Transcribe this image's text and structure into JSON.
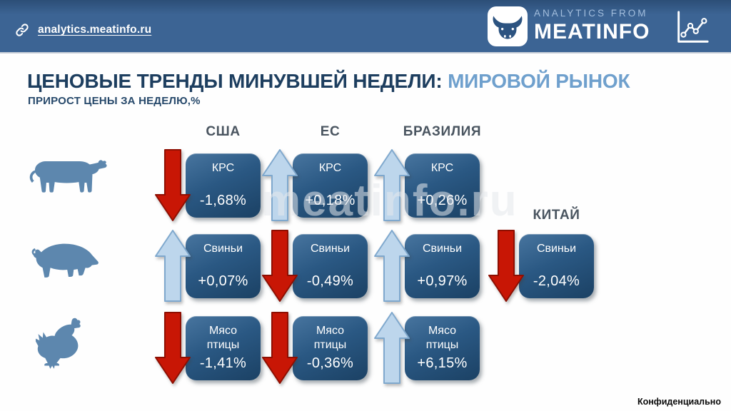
{
  "header": {
    "link_text": "analytics.meatinfo.ru",
    "logo": {
      "tagline": "ANALYTICS FROM",
      "brand": "MEATINFO"
    },
    "icons": {
      "left": "link-icon",
      "logo": "bull-icon",
      "right": "line-chart-icon"
    }
  },
  "title": {
    "main": "ЦЕНОВЫЕ ТРЕНДЫ МИНУВШЕЙ НЕДЕЛИ: ",
    "highlight": "МИРОВОЙ РЫНОК",
    "subtitle": "ПРИРОСТ ЦЕНЫ ЗА НЕДЕЛЮ,%"
  },
  "columns": [
    {
      "id": "usa",
      "label": "США"
    },
    {
      "id": "eu",
      "label": "ЕС"
    },
    {
      "id": "brazil",
      "label": "БРАЗИЛИЯ"
    },
    {
      "id": "china",
      "label": "КИТАЙ"
    }
  ],
  "rows": [
    {
      "id": "cattle",
      "icon": "cow-icon"
    },
    {
      "id": "pigs",
      "icon": "pig-icon"
    },
    {
      "id": "poultry",
      "icon": "chicken-icon"
    }
  ],
  "cards": [
    {
      "column": "usa",
      "row": 0,
      "label": "КРС",
      "value": "-1,68%",
      "direction": "down"
    },
    {
      "column": "eu",
      "row": 0,
      "label": "КРС",
      "value": "+0,18%",
      "direction": "up"
    },
    {
      "column": "brazil",
      "row": 0,
      "label": "КРС",
      "value": "+0,26%",
      "direction": "up"
    },
    {
      "column": "usa",
      "row": 1,
      "label": "Свиньи",
      "value": "+0,07%",
      "direction": "up"
    },
    {
      "column": "eu",
      "row": 1,
      "label": "Свиньи",
      "value": "-0,49%",
      "direction": "down"
    },
    {
      "column": "brazil",
      "row": 1,
      "label": "Свиньи",
      "value": "+0,97%",
      "direction": "up"
    },
    {
      "column": "china",
      "row": 1,
      "label": "Свиньи",
      "value": "-2,04%",
      "direction": "down"
    },
    {
      "column": "usa",
      "row": 2,
      "label": "Мясо птицы",
      "value": "-1,41%",
      "direction": "down"
    },
    {
      "column": "eu",
      "row": 2,
      "label": "Мясо птицы",
      "value": "-0,36%",
      "direction": "down"
    },
    {
      "column": "brazil",
      "row": 2,
      "label": "Мясо птицы",
      "value": "+6,15%",
      "direction": "up"
    }
  ],
  "watermark": {
    "text": "meatinfo.ru"
  },
  "footer": {
    "confidential": "Конфиденциально"
  },
  "colors": {
    "header_bg": "#3c6494",
    "header_dark": "#2c4e77",
    "title_dark": "#1d3e5f",
    "title_accent": "#6fa0cd",
    "column_header": "#4a5560",
    "card_top": "#48759f",
    "card_bottom": "#1b4164",
    "arrow_up": "#bdd6ec",
    "arrow_up_border": "#7fa8cd",
    "arrow_down": "#c81605",
    "arrow_down_border": "#8e0f02",
    "animal": "#5d87ae"
  },
  "chart_data": {
    "type": "table",
    "title": "ЦЕНОВЫЕ ТРЕНДЫ МИНУВШЕЙ НЕДЕЛИ: МИРОВОЙ РЫНОК",
    "subtitle": "ПРИРОСТ ЦЕНЫ ЗА НЕДЕЛЮ,%",
    "categories": [
      "КРС",
      "Свиньи",
      "Мясо птицы"
    ],
    "series": [
      {
        "name": "США",
        "values": [
          -1.68,
          0.07,
          -1.41
        ]
      },
      {
        "name": "ЕС",
        "values": [
          0.18,
          -0.49,
          -0.36
        ]
      },
      {
        "name": "БРАЗИЛИЯ",
        "values": [
          0.26,
          0.97,
          6.15
        ]
      },
      {
        "name": "КИТАЙ",
        "values": [
          null,
          -2.04,
          null
        ]
      }
    ],
    "value_unit": "%"
  }
}
